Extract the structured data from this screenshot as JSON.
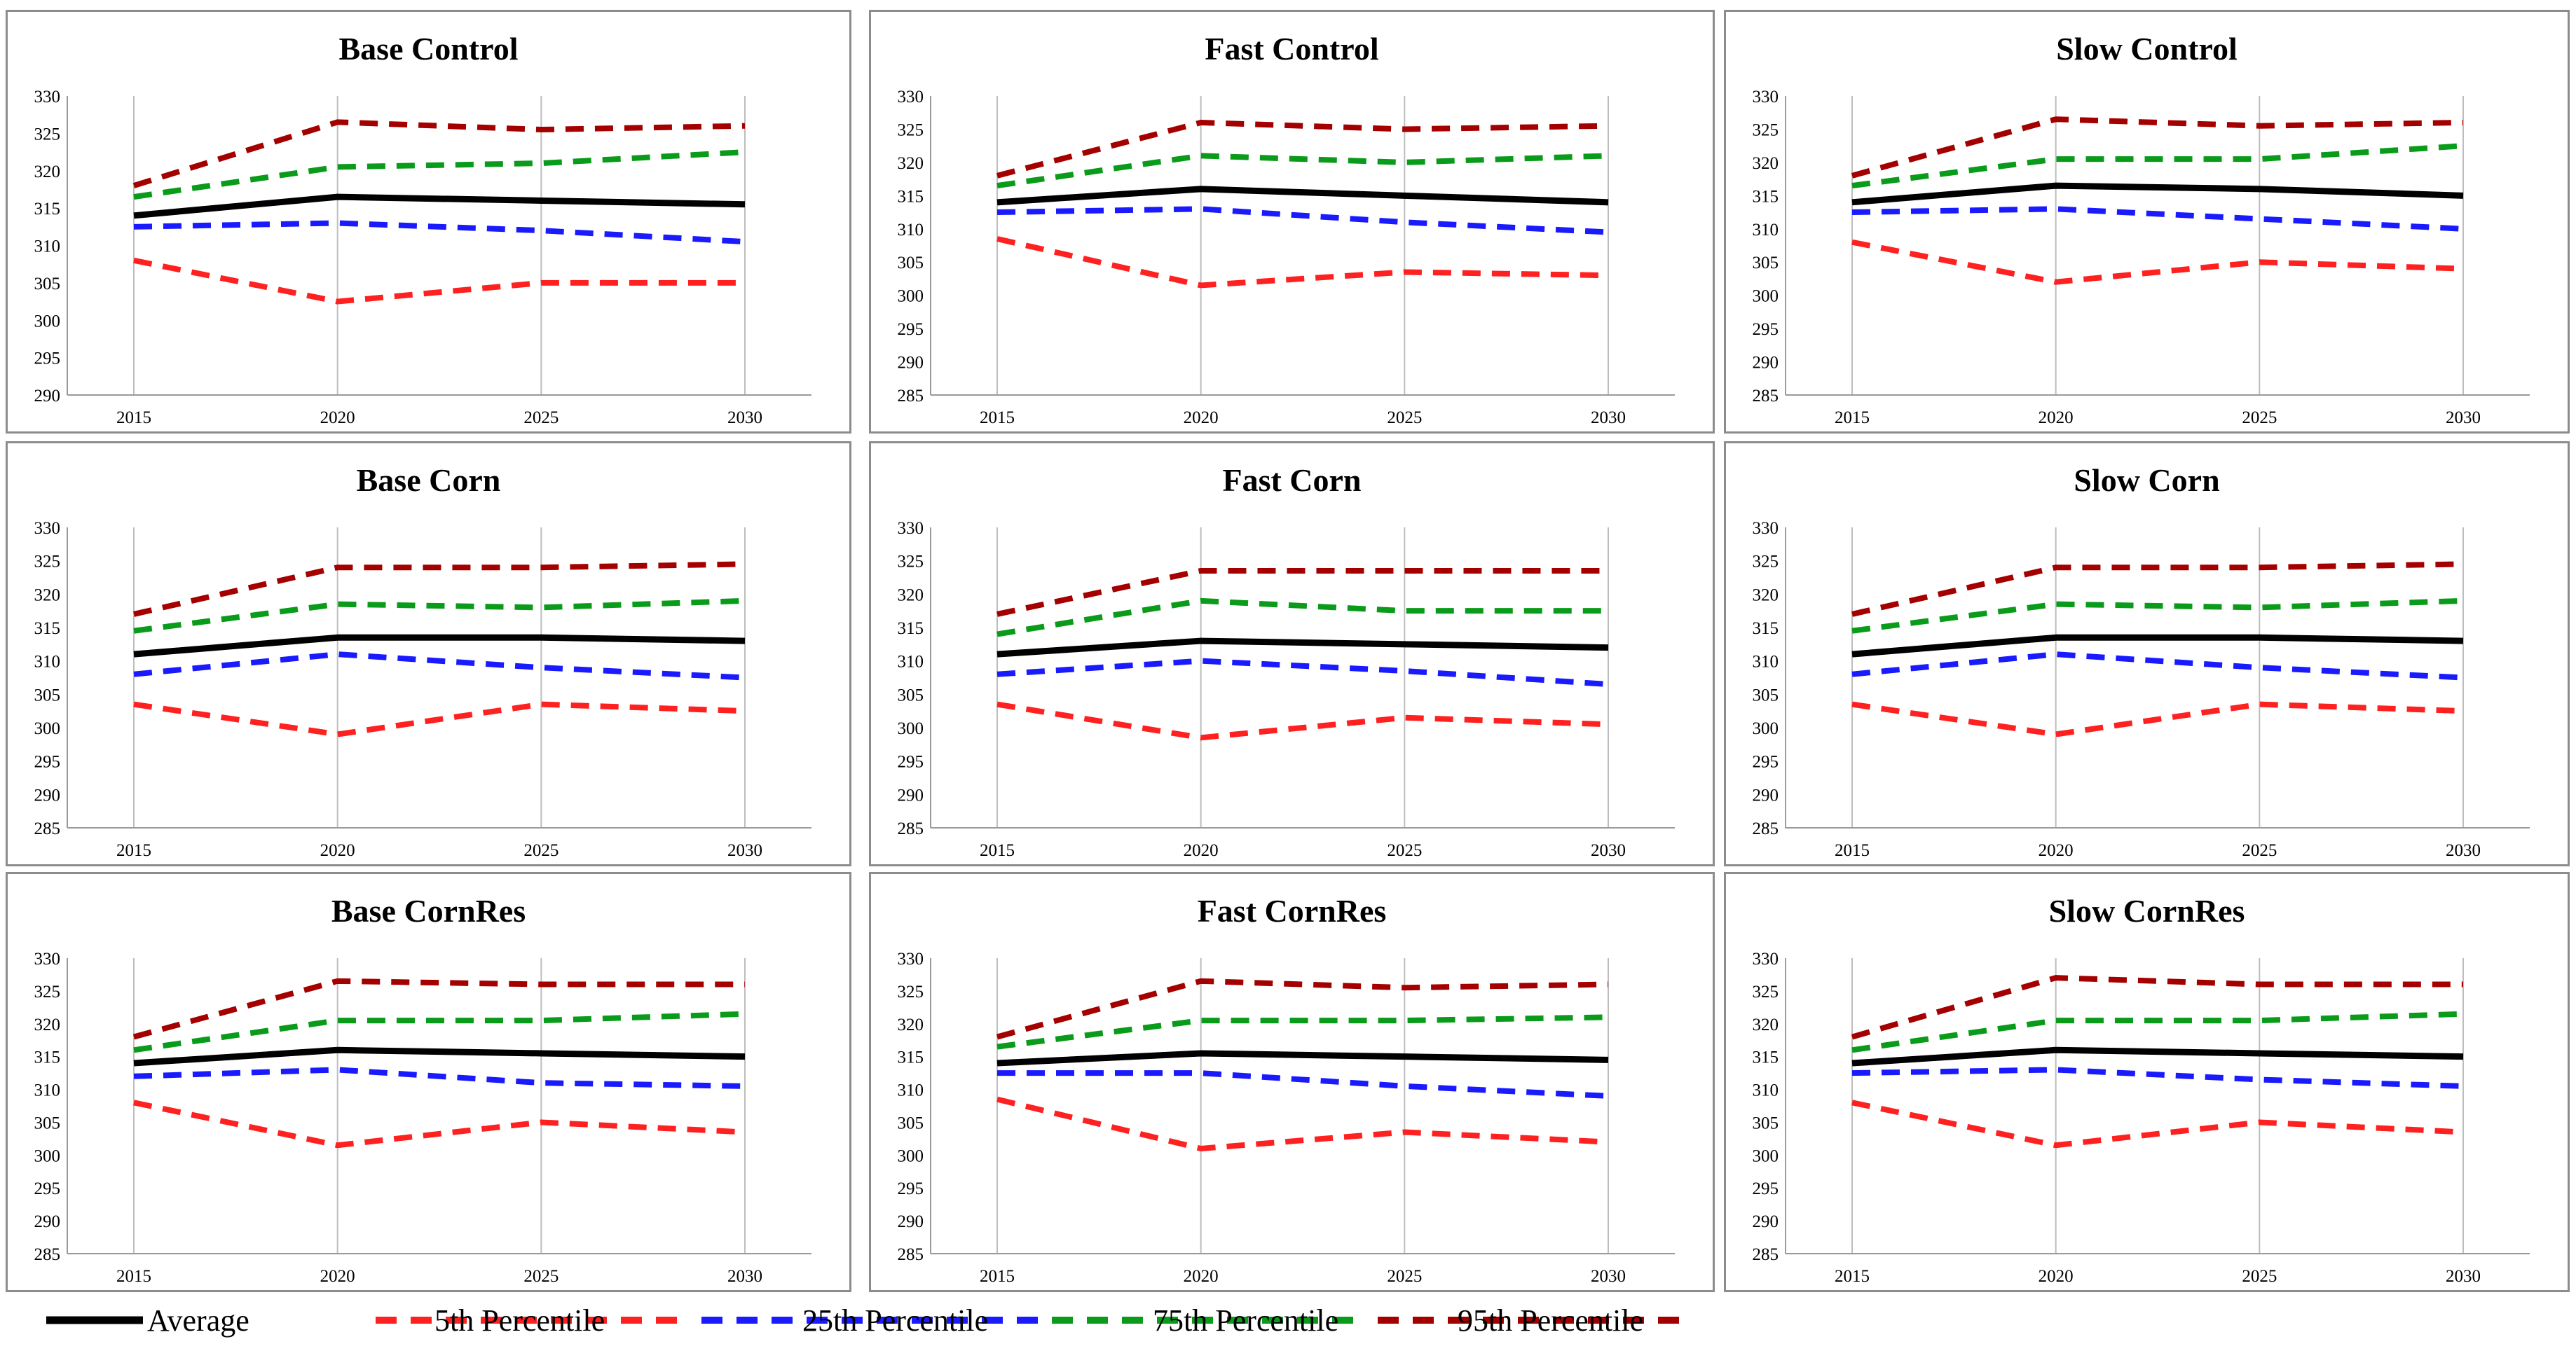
{
  "colors": {
    "average": "#000000",
    "p5": "#ff2020",
    "p25": "#1a1aff",
    "p75": "#0a9b1a",
    "p95": "#a40000",
    "grid": "#bdbdbd",
    "border": "#8c8c8c"
  },
  "legend": [
    {
      "key": "average",
      "label": "Average",
      "dashed": false,
      "icon": "solid-line-icon"
    },
    {
      "key": "p5",
      "label": "5th Percentile",
      "dashed": true,
      "icon": "dashed-line-icon"
    },
    {
      "key": "p25",
      "label": "25th Percentile",
      "dashed": true,
      "icon": "dashed-line-icon"
    },
    {
      "key": "p75",
      "label": "75th Percentile",
      "dashed": true,
      "icon": "dashed-line-icon"
    },
    {
      "key": "p95",
      "label": "95th Percentile",
      "dashed": true,
      "icon": "dashed-line-icon"
    }
  ],
  "chart_data": [
    {
      "type": "line",
      "title": "Base Control",
      "categories": [
        "2015",
        "2020",
        "2025",
        "2030"
      ],
      "ylim": [
        290,
        330
      ],
      "yticks": [
        290,
        295,
        300,
        305,
        310,
        315,
        320,
        325,
        330
      ],
      "series": [
        {
          "name": "Average",
          "key": "average",
          "values": [
            314.0,
            316.5,
            316.0,
            315.5
          ]
        },
        {
          "name": "5th Percentile",
          "key": "p5",
          "values": [
            308.0,
            302.5,
            305.0,
            305.0
          ]
        },
        {
          "name": "25th Percentile",
          "key": "p25",
          "values": [
            312.5,
            313.0,
            312.0,
            310.5
          ]
        },
        {
          "name": "75th Percentile",
          "key": "p75",
          "values": [
            316.5,
            320.5,
            321.0,
            322.5
          ]
        },
        {
          "name": "95th Percentile",
          "key": "p95",
          "values": [
            318.0,
            326.5,
            325.5,
            326.0
          ]
        }
      ]
    },
    {
      "type": "line",
      "title": "Fast Control",
      "categories": [
        "2015",
        "2020",
        "2025",
        "2030"
      ],
      "ylim": [
        285,
        330
      ],
      "yticks": [
        285,
        290,
        295,
        300,
        305,
        310,
        315,
        320,
        325,
        330
      ],
      "series": [
        {
          "name": "Average",
          "key": "average",
          "values": [
            314.0,
            316.0,
            315.0,
            314.0
          ]
        },
        {
          "name": "5th Percentile",
          "key": "p5",
          "values": [
            308.5,
            301.5,
            303.5,
            303.0
          ]
        },
        {
          "name": "25th Percentile",
          "key": "p25",
          "values": [
            312.5,
            313.0,
            311.0,
            309.5
          ]
        },
        {
          "name": "75th Percentile",
          "key": "p75",
          "values": [
            316.5,
            321.0,
            320.0,
            321.0
          ]
        },
        {
          "name": "95th Percentile",
          "key": "p95",
          "values": [
            318.0,
            326.0,
            325.0,
            325.5
          ]
        }
      ]
    },
    {
      "type": "line",
      "title": "Slow Control",
      "categories": [
        "2015",
        "2020",
        "2025",
        "2030"
      ],
      "ylim": [
        285,
        330
      ],
      "yticks": [
        285,
        290,
        295,
        300,
        305,
        310,
        315,
        320,
        325,
        330
      ],
      "series": [
        {
          "name": "Average",
          "key": "average",
          "values": [
            314.0,
            316.5,
            316.0,
            315.0
          ]
        },
        {
          "name": "5th Percentile",
          "key": "p5",
          "values": [
            308.0,
            302.0,
            305.0,
            304.0
          ]
        },
        {
          "name": "25th Percentile",
          "key": "p25",
          "values": [
            312.5,
            313.0,
            311.5,
            310.0
          ]
        },
        {
          "name": "75th Percentile",
          "key": "p75",
          "values": [
            316.5,
            320.5,
            320.5,
            322.5
          ]
        },
        {
          "name": "95th Percentile",
          "key": "p95",
          "values": [
            318.0,
            326.5,
            325.5,
            326.0
          ]
        }
      ]
    },
    {
      "type": "line",
      "title": "Base Corn",
      "categories": [
        "2015",
        "2020",
        "2025",
        "2030"
      ],
      "ylim": [
        285,
        330
      ],
      "yticks": [
        285,
        290,
        295,
        300,
        305,
        310,
        315,
        320,
        325,
        330
      ],
      "series": [
        {
          "name": "Average",
          "key": "average",
          "values": [
            311.0,
            313.5,
            313.5,
            313.0
          ]
        },
        {
          "name": "5th Percentile",
          "key": "p5",
          "values": [
            303.5,
            299.0,
            303.5,
            302.5
          ]
        },
        {
          "name": "25th Percentile",
          "key": "p25",
          "values": [
            308.0,
            311.0,
            309.0,
            307.5
          ]
        },
        {
          "name": "75th Percentile",
          "key": "p75",
          "values": [
            314.5,
            318.5,
            318.0,
            319.0
          ]
        },
        {
          "name": "95th Percentile",
          "key": "p95",
          "values": [
            317.0,
            324.0,
            324.0,
            324.5
          ]
        }
      ]
    },
    {
      "type": "line",
      "title": "Fast Corn",
      "categories": [
        "2015",
        "2020",
        "2025",
        "2030"
      ],
      "ylim": [
        285,
        330
      ],
      "yticks": [
        285,
        290,
        295,
        300,
        305,
        310,
        315,
        320,
        325,
        330
      ],
      "series": [
        {
          "name": "Average",
          "key": "average",
          "values": [
            311.0,
            313.0,
            312.5,
            312.0
          ]
        },
        {
          "name": "5th Percentile",
          "key": "p5",
          "values": [
            303.5,
            298.5,
            301.5,
            300.5
          ]
        },
        {
          "name": "25th Percentile",
          "key": "p25",
          "values": [
            308.0,
            310.0,
            308.5,
            306.5
          ]
        },
        {
          "name": "75th Percentile",
          "key": "p75",
          "values": [
            314.0,
            319.0,
            317.5,
            317.5
          ]
        },
        {
          "name": "95th Percentile",
          "key": "p95",
          "values": [
            317.0,
            323.5,
            323.5,
            323.5
          ]
        }
      ]
    },
    {
      "type": "line",
      "title": "Slow Corn",
      "categories": [
        "2015",
        "2020",
        "2025",
        "2030"
      ],
      "ylim": [
        285,
        330
      ],
      "yticks": [
        285,
        290,
        295,
        300,
        305,
        310,
        315,
        320,
        325,
        330
      ],
      "series": [
        {
          "name": "Average",
          "key": "average",
          "values": [
            311.0,
            313.5,
            313.5,
            313.0
          ]
        },
        {
          "name": "5th Percentile",
          "key": "p5",
          "values": [
            303.5,
            299.0,
            303.5,
            302.5
          ]
        },
        {
          "name": "25th Percentile",
          "key": "p25",
          "values": [
            308.0,
            311.0,
            309.0,
            307.5
          ]
        },
        {
          "name": "75th Percentile",
          "key": "p75",
          "values": [
            314.5,
            318.5,
            318.0,
            319.0
          ]
        },
        {
          "name": "95th Percentile",
          "key": "p95",
          "values": [
            317.0,
            324.0,
            324.0,
            324.5
          ]
        }
      ]
    },
    {
      "type": "line",
      "title": "Base CornRes",
      "categories": [
        "2015",
        "2020",
        "2025",
        "2030"
      ],
      "ylim": [
        285,
        330
      ],
      "yticks": [
        285,
        290,
        295,
        300,
        305,
        310,
        315,
        320,
        325,
        330
      ],
      "series": [
        {
          "name": "Average",
          "key": "average",
          "values": [
            314.0,
            316.0,
            315.5,
            315.0
          ]
        },
        {
          "name": "5th Percentile",
          "key": "p5",
          "values": [
            308.0,
            301.5,
            305.0,
            303.5
          ]
        },
        {
          "name": "25th Percentile",
          "key": "p25",
          "values": [
            312.0,
            313.0,
            311.0,
            310.5
          ]
        },
        {
          "name": "75th Percentile",
          "key": "p75",
          "values": [
            316.0,
            320.5,
            320.5,
            321.5
          ]
        },
        {
          "name": "95th Percentile",
          "key": "p95",
          "values": [
            318.0,
            326.5,
            326.0,
            326.0
          ]
        }
      ]
    },
    {
      "type": "line",
      "title": "Fast CornRes",
      "categories": [
        "2015",
        "2020",
        "2025",
        "2030"
      ],
      "ylim": [
        285,
        330
      ],
      "yticks": [
        285,
        290,
        295,
        300,
        305,
        310,
        315,
        320,
        325,
        330
      ],
      "series": [
        {
          "name": "Average",
          "key": "average",
          "values": [
            314.0,
            315.5,
            315.0,
            314.5
          ]
        },
        {
          "name": "5th Percentile",
          "key": "p5",
          "values": [
            308.5,
            301.0,
            303.5,
            302.0
          ]
        },
        {
          "name": "25th Percentile",
          "key": "p25",
          "values": [
            312.5,
            312.5,
            310.5,
            309.0
          ]
        },
        {
          "name": "75th Percentile",
          "key": "p75",
          "values": [
            316.5,
            320.5,
            320.5,
            321.0
          ]
        },
        {
          "name": "95th Percentile",
          "key": "p95",
          "values": [
            318.0,
            326.5,
            325.5,
            326.0
          ]
        }
      ]
    },
    {
      "type": "line",
      "title": "Slow CornRes",
      "categories": [
        "2015",
        "2020",
        "2025",
        "2030"
      ],
      "ylim": [
        285,
        330
      ],
      "yticks": [
        285,
        290,
        295,
        300,
        305,
        310,
        315,
        320,
        325,
        330
      ],
      "series": [
        {
          "name": "Average",
          "key": "average",
          "values": [
            314.0,
            316.0,
            315.5,
            315.0
          ]
        },
        {
          "name": "5th Percentile",
          "key": "p5",
          "values": [
            308.0,
            301.5,
            305.0,
            303.5
          ]
        },
        {
          "name": "25th Percentile",
          "key": "p25",
          "values": [
            312.5,
            313.0,
            311.5,
            310.5
          ]
        },
        {
          "name": "75th Percentile",
          "key": "p75",
          "values": [
            316.0,
            320.5,
            320.5,
            321.5
          ]
        },
        {
          "name": "95th Percentile",
          "key": "p95",
          "values": [
            318.0,
            327.0,
            326.0,
            326.0
          ]
        }
      ]
    }
  ]
}
